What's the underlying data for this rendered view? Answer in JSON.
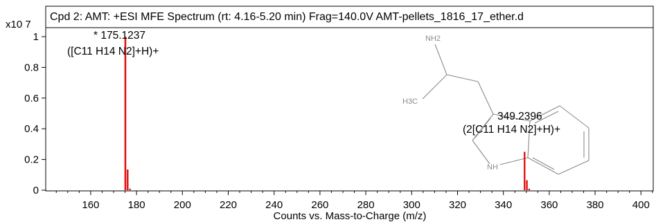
{
  "chart_data": {
    "type": "bar",
    "title": "Cpd 2: AMT: +ESI MFE Spectrum (rt: 4.16-5.20 min) Frag=140.0V AMT-pellets_1816_17_ether.d",
    "xlabel": "Counts vs. Mass-to-Charge (m/z)",
    "y_multiplier": "x10 7",
    "xlim": [
      142,
      406
    ],
    "ylim": [
      0,
      1.03
    ],
    "x_ticks": [
      160,
      180,
      200,
      220,
      240,
      260,
      280,
      300,
      320,
      340,
      360,
      380,
      400
    ],
    "y_ticks": [
      0,
      0.2,
      0.4,
      0.6,
      0.8,
      1
    ],
    "x_tick_labels": [
      "160",
      "180",
      "200",
      "220",
      "240",
      "260",
      "280",
      "300",
      "320",
      "340",
      "360",
      "380",
      "400"
    ],
    "y_tick_labels": [
      "0",
      "0.2",
      "0.4",
      "0.6",
      "0.8",
      "1"
    ],
    "peaks": [
      {
        "mz": 175.1237,
        "intensity": 1.0
      },
      {
        "mz": 176.13,
        "intensity": 0.135
      },
      {
        "mz": 177.13,
        "intensity": 0.01
      },
      {
        "mz": 349.2396,
        "intensity": 0.25
      },
      {
        "mz": 350.24,
        "intensity": 0.065
      },
      {
        "mz": 351.24,
        "intensity": 0.01
      }
    ],
    "annotations": [
      {
        "line1": "* 175.1237",
        "line2": "([C11 H14 N2]+H)+"
      },
      {
        "line1": "349.2396",
        "line2": "(2[C11 H14 N2]+H)+"
      }
    ],
    "grid": false,
    "peak_color": "#e01010"
  },
  "structure": {
    "labels": {
      "nh2": "NH2",
      "h3c": "H3C",
      "nh": "NH"
    }
  }
}
